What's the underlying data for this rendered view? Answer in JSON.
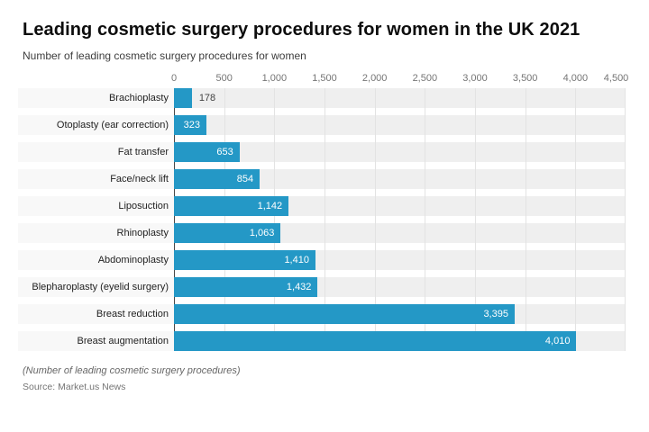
{
  "header": {
    "title": "Leading cosmetic surgery procedures for women in the UK 2021",
    "subtitle": "Number of leading cosmetic surgery procedures for women"
  },
  "footer": {
    "footnote": "(Number of leading cosmetic surgery procedures)",
    "source": "Source: Market.us News"
  },
  "axis": {
    "tick_values": [
      0,
      500,
      1000,
      1500,
      2000,
      2500,
      3000,
      3500,
      4000,
      4500
    ],
    "tick_labels": [
      "0",
      "500",
      "1,000",
      "1,500",
      "2,000",
      "2,500",
      "3,000",
      "3,500",
      "4,000",
      "4,500"
    ]
  },
  "chart_data": {
    "type": "bar",
    "orientation": "horizontal",
    "title": "Leading cosmetic surgery procedures for women in the UK 2021",
    "subtitle": "Number of leading cosmetic surgery procedures for women",
    "xlabel": "",
    "ylabel": "",
    "xlim": [
      0,
      4500
    ],
    "grid": true,
    "legend": false,
    "categories": [
      "Brachioplasty",
      "Otoplasty (ear correction)",
      "Fat transfer",
      "Face/neck lift",
      "Liposuction",
      "Rhinoplasty",
      "Abdominoplasty",
      "Blepharoplasty (eyelid surgery)",
      "Breast reduction",
      "Breast augmentation"
    ],
    "values": [
      178,
      323,
      653,
      854,
      1142,
      1063,
      1410,
      1432,
      3395,
      4010
    ],
    "value_labels": [
      "178",
      "323",
      "653",
      "854",
      "1,142",
      "1,063",
      "1,410",
      "1,432",
      "3,395",
      "4,010"
    ],
    "value_label_positions": [
      "outside",
      "inside",
      "inside",
      "inside",
      "inside",
      "inside",
      "inside",
      "inside",
      "inside",
      "inside"
    ]
  },
  "colors": {
    "bar": "#2498c6",
    "stripe_plot": "#efefef",
    "stripe_label": "#f8f8f8",
    "gridline": "#e3e3e3",
    "zero_line": "#4a4a4a",
    "value_inside_text": "#ffffff",
    "value_outside_text": "#424242"
  }
}
